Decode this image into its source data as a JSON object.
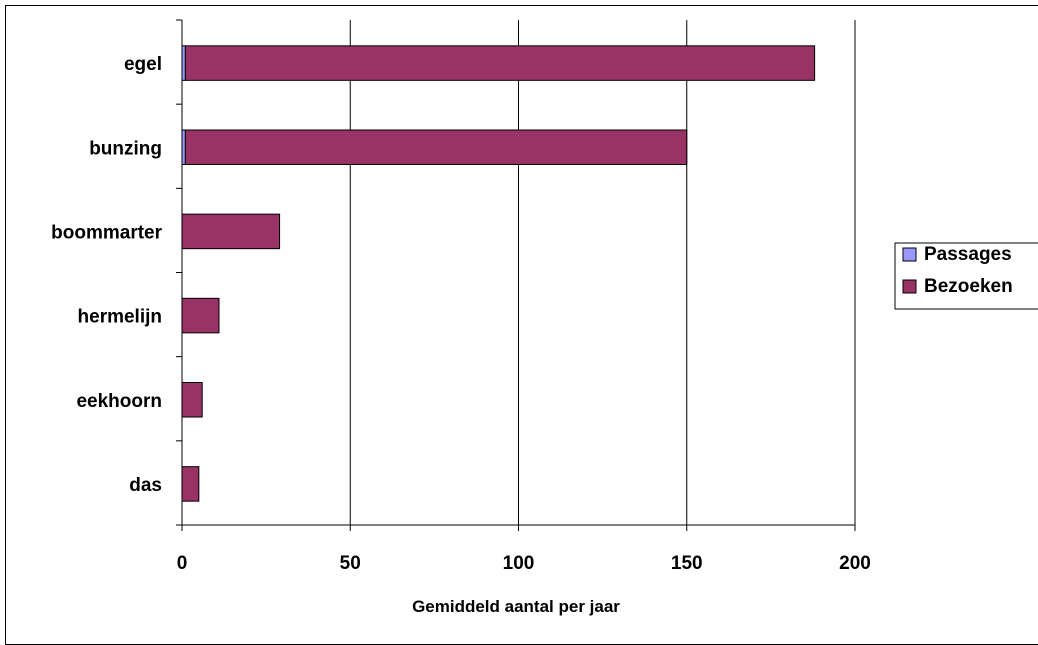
{
  "chart_data": {
    "type": "bar",
    "orientation": "horizontal",
    "stacked": true,
    "categories": [
      "egel",
      "bunzing",
      "boommarter",
      "hermelijn",
      "eekhoorn",
      "das"
    ],
    "series": [
      {
        "name": "Passages",
        "values": [
          1,
          1,
          0,
          0,
          0,
          0
        ],
        "color": "#9999FF"
      },
      {
        "name": "Bezoeken",
        "values": [
          187,
          149,
          29,
          11,
          6,
          5
        ],
        "color": "#993366"
      }
    ],
    "title": "",
    "xlabel": "Gemiddeld aantal per jaar",
    "ylabel": "",
    "xlim": [
      0,
      200
    ],
    "xticks": [
      "0",
      "50",
      "100",
      "150",
      "200"
    ],
    "grid": "vertical",
    "legend_position": "right"
  }
}
